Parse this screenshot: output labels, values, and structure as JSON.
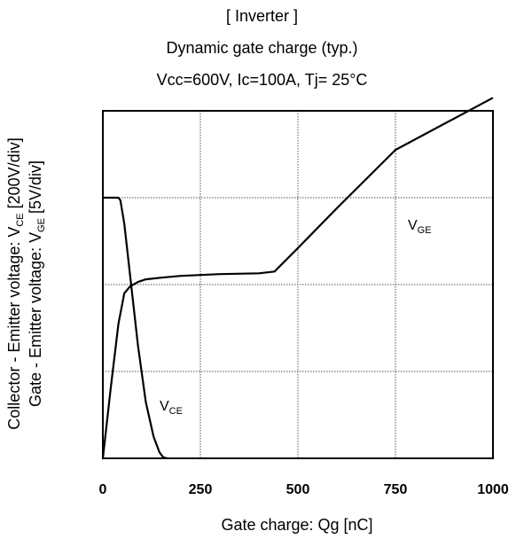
{
  "header": {
    "title": "[ Inverter ]",
    "subtitle": "Dynamic gate charge  (typ.)",
    "conditions": "Vcc=600V,  Ic=100A,  Tj= 25°C"
  },
  "chart_data": {
    "type": "line",
    "title": "[ Inverter ] Dynamic gate charge (typ.)",
    "xlabel": "Gate charge: Qg [nC]",
    "ylabel_left_main": "Collector - Emitter voltage: V",
    "ylabel_left_sub": "CE",
    "ylabel_left_unit": " [200V/div]",
    "ylabel_right_main": "Gate - Emitter voltage:     V",
    "ylabel_right_sub": "GE",
    "ylabel_right_unit": " [5V/div]",
    "xlim": [
      0,
      1000
    ],
    "xticks": [
      "0",
      "250",
      "500",
      "750",
      "1000"
    ],
    "ylim_div": [
      0,
      4
    ],
    "grid": true,
    "series": [
      {
        "name": "VGE",
        "label_main": "V",
        "label_sub": "GE",
        "unit": "div (5V/div)",
        "x": [
          0,
          20,
          40,
          55,
          70,
          90,
          110,
          130,
          150,
          200,
          300,
          400,
          440,
          500,
          600,
          750,
          1000
        ],
        "y": [
          0,
          0.8,
          1.55,
          1.9,
          1.98,
          2.03,
          2.06,
          2.07,
          2.08,
          2.1,
          2.12,
          2.13,
          2.15,
          2.42,
          2.88,
          3.55,
          4.15
        ]
      },
      {
        "name": "VCE",
        "label_main": "V",
        "label_sub": "CE",
        "unit": "div (200V/div)",
        "x": [
          0,
          40,
          45,
          55,
          70,
          90,
          110,
          130,
          145,
          155,
          165
        ],
        "y": [
          3.0,
          3.0,
          2.97,
          2.7,
          2.1,
          1.3,
          0.65,
          0.25,
          0.07,
          0.01,
          0
        ]
      }
    ]
  }
}
